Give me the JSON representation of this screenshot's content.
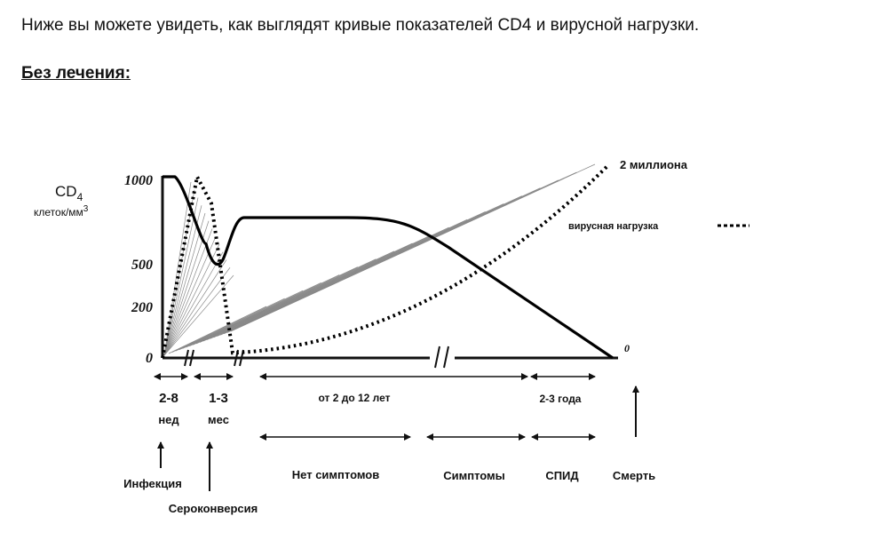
{
  "intro_text": "Ниже вы можете увидеть, как выглядят кривые показателей CD4 и вирусной нагрузки.",
  "section_heading": "Без лечения:",
  "chart_data": {
    "type": "line",
    "ylabel_main": "CD",
    "ylabel_sub": "4",
    "ylabel_units": "клеток/мм",
    "ylabel_units_sup": "3",
    "y_ticks": [
      "1000",
      "500",
      "200",
      "0"
    ],
    "y_values": [
      1000,
      500,
      200,
      0
    ],
    "right_zero_label": "0",
    "series": [
      {
        "name": "CD4",
        "style": "solid",
        "color": "#000000",
        "points": [
          [
            0,
            1000
          ],
          [
            0.45,
            1000
          ],
          [
            0.95,
            620
          ],
          [
            1.35,
            540
          ],
          [
            1.75,
            770
          ],
          [
            4,
            770
          ],
          [
            8,
            600
          ],
          [
            11.5,
            0
          ]
        ]
      },
      {
        "name": "вирусная нагрузка",
        "style": "dotted",
        "color": "#000000",
        "points": [
          [
            0,
            0
          ],
          [
            0.7,
            1000
          ],
          [
            1.1,
            850
          ],
          [
            1.5,
            20
          ],
          [
            12.5,
            1000
          ]
        ]
      }
    ],
    "peak_label": "2 миллиона",
    "legend_label": "вирусная нагрузка",
    "periods": [
      {
        "line1": "2-8",
        "line2": "нед"
      },
      {
        "line1": "1-3",
        "line2": "мес"
      },
      {
        "line1": "от 2 до 12 лет",
        "line2": ""
      },
      {
        "line1": "2-3 года",
        "line2": ""
      }
    ],
    "stages": [
      "Нет симптомов",
      "Симптомы",
      "СПИД",
      "Смерть"
    ],
    "events": [
      "Инфекция",
      "Сероконверсия"
    ]
  }
}
